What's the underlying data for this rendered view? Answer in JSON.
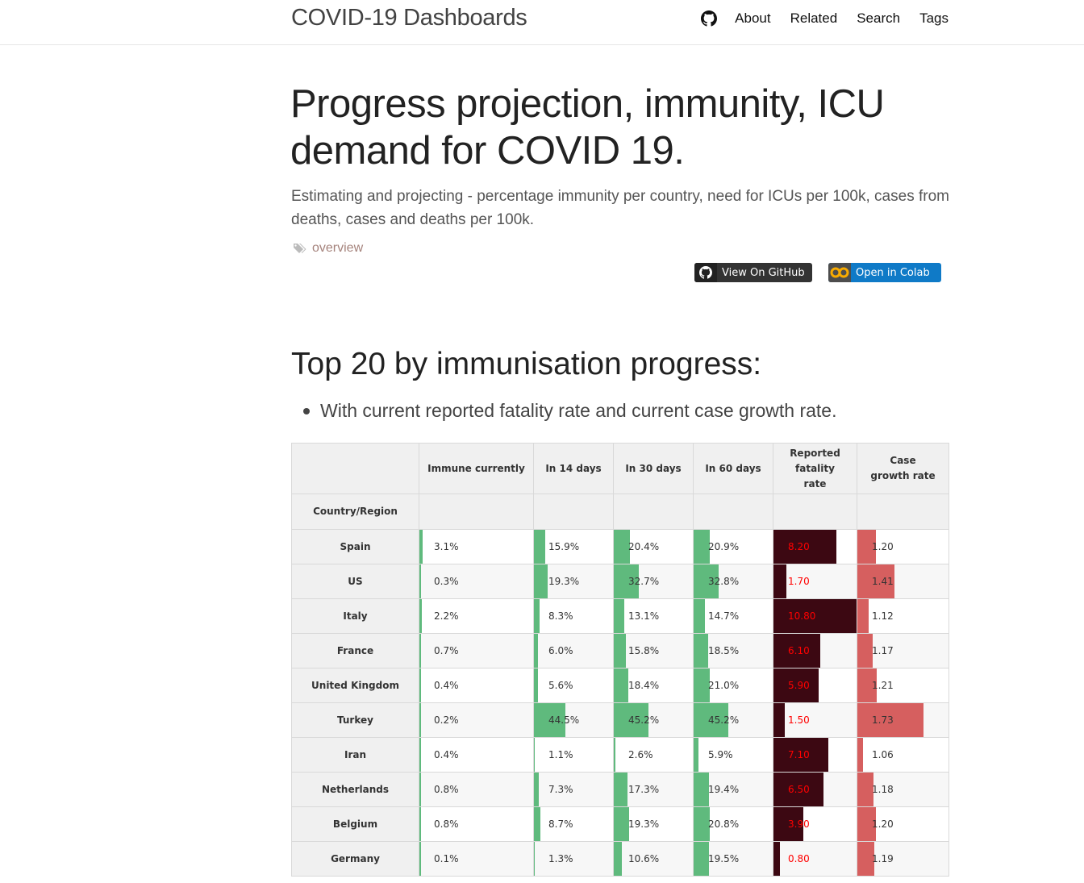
{
  "site": {
    "title": "COVID-19 Dashboards",
    "nav": [
      "About",
      "Related",
      "Search",
      "Tags"
    ]
  },
  "post": {
    "title": "Progress projection, immunity, ICU demand for COVID 19.",
    "description": "Estimating and projecting - percentage immunity per country, need for ICUs per 100k, cases from deaths, cases and deaths per 100k.",
    "tag": "overview",
    "badges": {
      "github": "View On GitHub",
      "colab": "Open in Colab"
    }
  },
  "section": {
    "heading": "Top 20 by immunisation progress:",
    "bullet": "With current reported fatality rate and current case growth rate."
  },
  "colors": {
    "green": "#5fba7d",
    "maroon": "#3c0812",
    "pink": "#d65f5f",
    "fatality_text": "#ff0000"
  },
  "table": {
    "index_label": "Country/Region",
    "columns": [
      "Immune currently",
      "In 14 days",
      "In 30 days",
      "In 60 days",
      "Reported fatality rate",
      "Case growth rate"
    ],
    "rows": [
      {
        "country": "Spain",
        "immune": "3.1%",
        "d14": "15.9%",
        "d30": "20.4%",
        "d60": "20.9%",
        "fatality": "8.20",
        "growth": "1.20"
      },
      {
        "country": "US",
        "immune": "0.3%",
        "d14": "19.3%",
        "d30": "32.7%",
        "d60": "32.8%",
        "fatality": "1.70",
        "growth": "1.41"
      },
      {
        "country": "Italy",
        "immune": "2.2%",
        "d14": "8.3%",
        "d30": "13.1%",
        "d60": "14.7%",
        "fatality": "10.80",
        "growth": "1.12"
      },
      {
        "country": "France",
        "immune": "0.7%",
        "d14": "6.0%",
        "d30": "15.8%",
        "d60": "18.5%",
        "fatality": "6.10",
        "growth": "1.17"
      },
      {
        "country": "United Kingdom",
        "immune": "0.4%",
        "d14": "5.6%",
        "d30": "18.4%",
        "d60": "21.0%",
        "fatality": "5.90",
        "growth": "1.21"
      },
      {
        "country": "Turkey",
        "immune": "0.2%",
        "d14": "44.5%",
        "d30": "45.2%",
        "d60": "45.2%",
        "fatality": "1.50",
        "growth": "1.73"
      },
      {
        "country": "Iran",
        "immune": "0.4%",
        "d14": "1.1%",
        "d30": "2.6%",
        "d60": "5.9%",
        "fatality": "7.10",
        "growth": "1.06"
      },
      {
        "country": "Netherlands",
        "immune": "0.8%",
        "d14": "7.3%",
        "d30": "17.3%",
        "d60": "19.4%",
        "fatality": "6.50",
        "growth": "1.18"
      },
      {
        "country": "Belgium",
        "immune": "0.8%",
        "d14": "8.7%",
        "d30": "19.3%",
        "d60": "20.8%",
        "fatality": "3.90",
        "growth": "1.20"
      },
      {
        "country": "Germany",
        "immune": "0.1%",
        "d14": "1.3%",
        "d30": "10.6%",
        "d60": "19.5%",
        "fatality": "0.80",
        "growth": "1.19"
      }
    ]
  }
}
